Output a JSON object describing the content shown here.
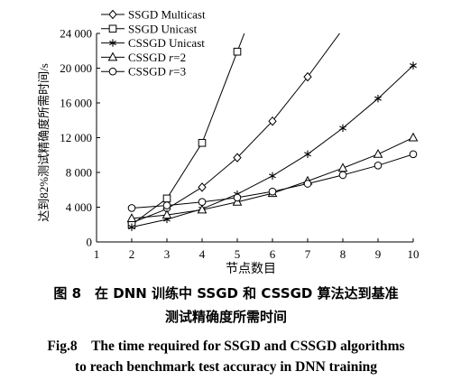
{
  "chart_data": {
    "type": "line",
    "xlabel": "节点数目",
    "ylabel": "达到82%测试精确度所需时间/s",
    "x_ticks": [
      1,
      2,
      3,
      4,
      5,
      6,
      7,
      8,
      9,
      10
    ],
    "y_ticks": [
      "0",
      "4 000",
      "8 000",
      "12 000",
      "16 000",
      "20 000",
      "24 000"
    ],
    "xlim": [
      1,
      10
    ],
    "ylim": [
      0,
      24000
    ],
    "grid": false,
    "legend_position": "top-left",
    "series": [
      {
        "name": "SSGD Multicast",
        "marker": "diamond",
        "x": [
          2,
          3,
          4,
          5,
          6,
          7,
          8
        ],
        "y": [
          2200,
          3800,
          6300,
          9700,
          13900,
          19000,
          24500
        ]
      },
      {
        "name": "SSGD Unicast",
        "marker": "square",
        "x": [
          2,
          3,
          4,
          5,
          5.2
        ],
        "y": [
          2000,
          5000,
          11400,
          21900,
          24000
        ]
      },
      {
        "name": "CSSGD Unicast",
        "marker": "star",
        "x": [
          2,
          3,
          4,
          5,
          6,
          7,
          8,
          9,
          10
        ],
        "y": [
          1700,
          2600,
          3800,
          5500,
          7600,
          10100,
          13100,
          16500,
          20300
        ]
      },
      {
        "name": "CSSGD r=2",
        "marker": "triangle",
        "x": [
          2,
          3,
          4,
          5,
          6,
          7,
          8,
          9,
          10
        ],
        "y": [
          2700,
          3100,
          3700,
          4600,
          5600,
          7000,
          8500,
          10100,
          12000
        ]
      },
      {
        "name": "CSSGD r=3",
        "marker": "circle",
        "x": [
          2,
          3,
          4,
          5,
          6,
          7,
          8,
          9,
          10
        ],
        "y": [
          3900,
          4200,
          4600,
          5100,
          5800,
          6700,
          7700,
          8800,
          10100
        ]
      }
    ]
  },
  "caption": {
    "cn_line1": "图 8　在 DNN 训练中 SSGD 和 CSSGD 算法达到基准",
    "cn_line2": "测试精确度所需时间",
    "en_line1": "Fig.8　The time required for SSGD and CSSGD algorithms",
    "en_line2": "to reach benchmark test accuracy in DNN training"
  }
}
